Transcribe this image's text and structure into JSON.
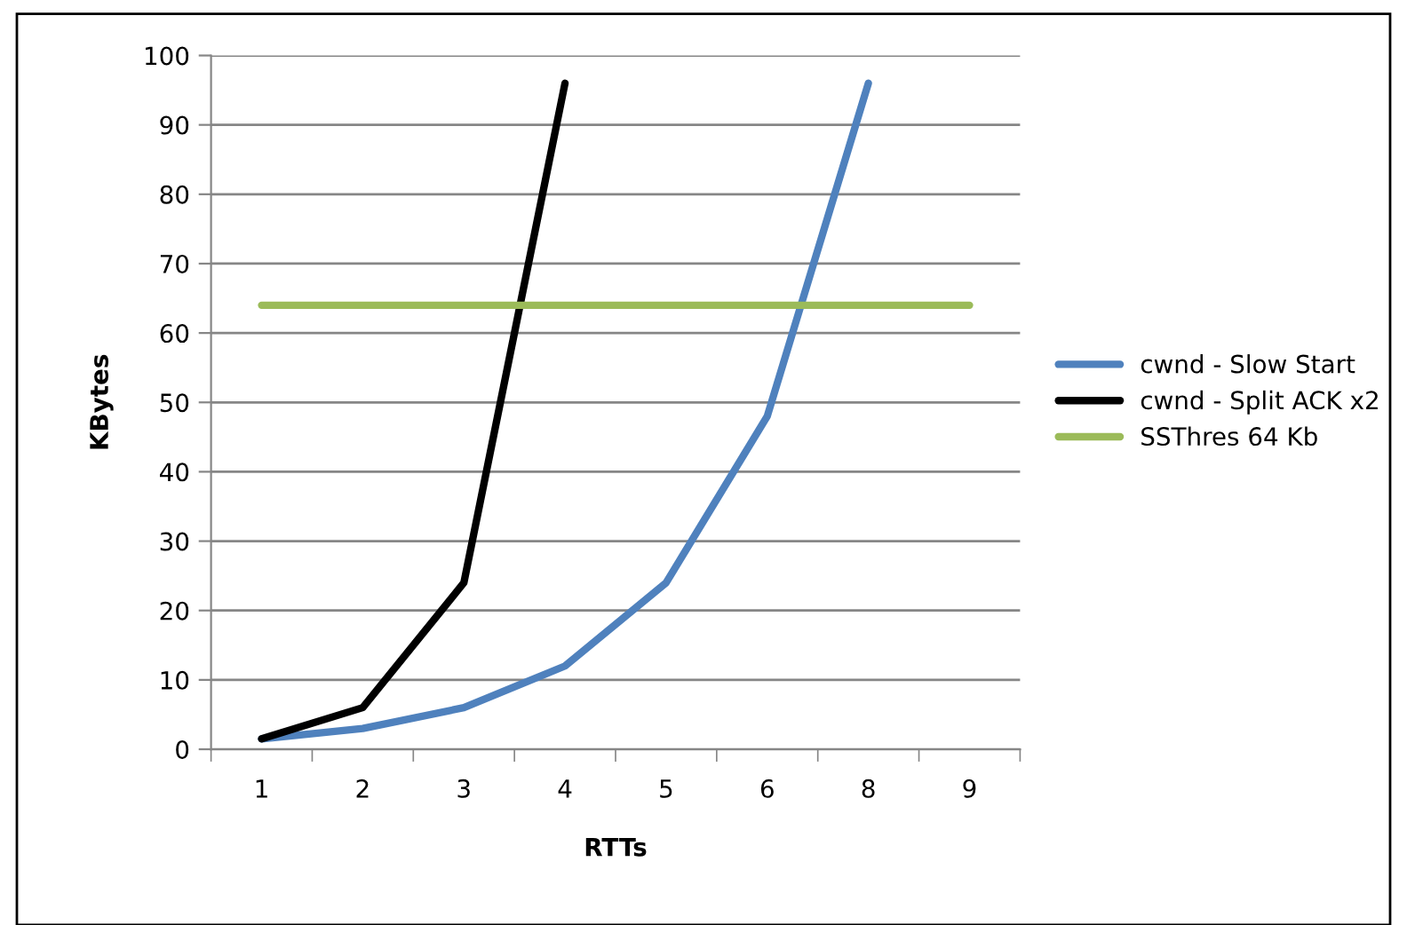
{
  "chart_data": {
    "type": "line",
    "xlabel": "RTTs",
    "ylabel": "KBytes",
    "categories": [
      "1",
      "2",
      "3",
      "4",
      "5",
      "6",
      "8",
      "9"
    ],
    "series": [
      {
        "name": "cwnd - Slow Start",
        "color": "#4f81bd",
        "values": [
          1.5,
          3,
          6,
          12,
          24,
          48,
          96,
          null
        ]
      },
      {
        "name": "cwnd - Split ACK x2",
        "color": "#000000",
        "values": [
          1.5,
          6,
          24,
          96,
          null,
          null,
          null,
          null
        ]
      },
      {
        "name": "SSThres 64 Kb",
        "color": "#9bbb59",
        "values": [
          64,
          64,
          64,
          64,
          64,
          64,
          64,
          64
        ]
      }
    ],
    "ylim": [
      0,
      100
    ],
    "yticks": [
      0,
      10,
      20,
      30,
      40,
      50,
      60,
      70,
      80,
      90,
      100
    ],
    "grid": "y",
    "legend": "right",
    "marker": "none",
    "line_style": "solid"
  }
}
